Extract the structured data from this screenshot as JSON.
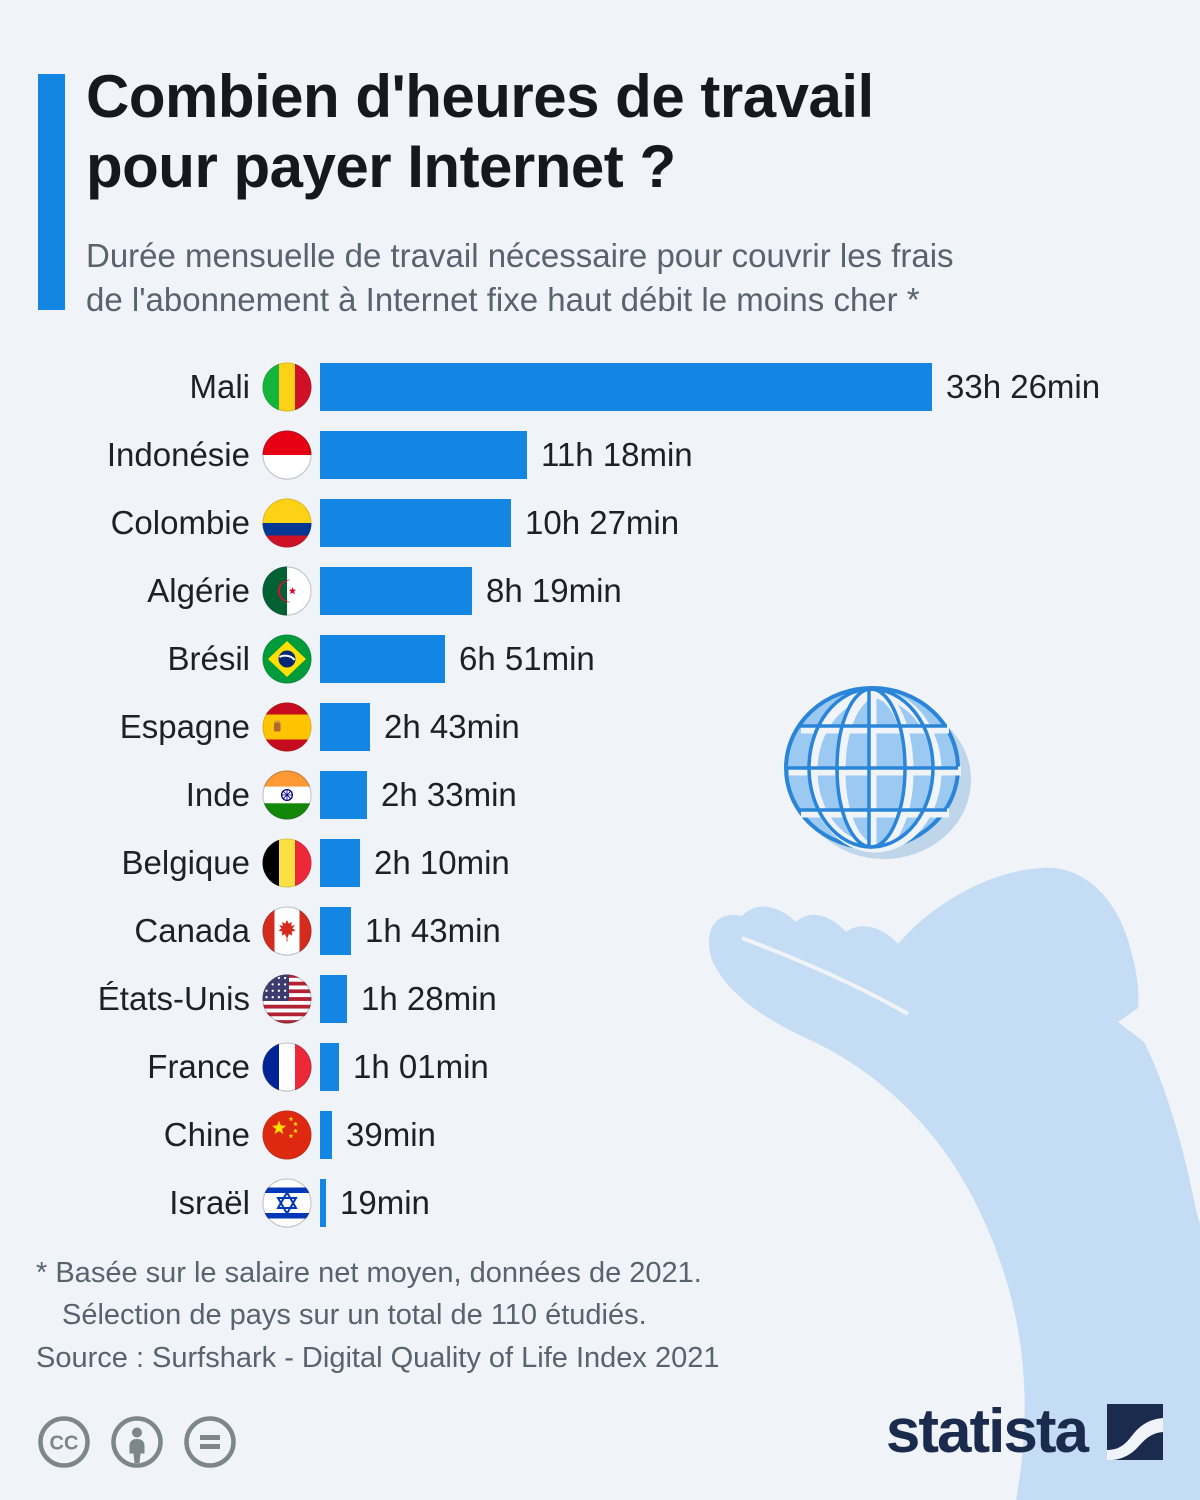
{
  "chart_data": {
    "type": "bar",
    "orientation": "horizontal",
    "title": "Combien d'heures de travail pour payer Internet ?",
    "title_lines": [
      "Combien d'heures de travail",
      "pour payer Internet ?"
    ],
    "subtitle_lines": [
      "Durée mensuelle de travail nécessaire pour couvrir les frais",
      "de l'abonnement à Internet fixe haut débit le moins cher *"
    ],
    "unit": "minutes of monthly work",
    "value_axis_max": 2006,
    "categories": [
      "Mali",
      "Indonésie",
      "Colombie",
      "Algérie",
      "Brésil",
      "Espagne",
      "Inde",
      "Belgique",
      "Canada",
      "États-Unis",
      "France",
      "Chine",
      "Israël"
    ],
    "values": [
      2006,
      678,
      627,
      499,
      411,
      163,
      153,
      130,
      103,
      88,
      61,
      39,
      19
    ],
    "value_labels": [
      "33h 26min",
      "11h 18min",
      "10h 27min",
      "8h 19min",
      "6h 51min",
      "2h 43min",
      "2h 33min",
      "2h 10min",
      "1h 43min",
      "1h 28min",
      "1h 01min",
      "39min",
      "19min"
    ],
    "flags": [
      "mali",
      "indonesie",
      "colombie",
      "algerie",
      "bresil",
      "espagne",
      "inde",
      "belgique",
      "canada",
      "etats-unis",
      "france",
      "chine",
      "israel"
    ],
    "bar_color": "#1385e2",
    "legend": "none",
    "grid": "off"
  },
  "footnote": {
    "line1": "* Basée sur le salaire net moyen, données de 2021.",
    "line2": "Sélection de pays sur un total de 110 étudiés."
  },
  "source": "Source : Surfshark - Digital Quality of Life Index 2021",
  "footer": {
    "brand": "statista",
    "license_icons": [
      "cc-icon",
      "attribution-icon",
      "no-derivatives-icon"
    ]
  },
  "colors": {
    "background": "#f0f4f8",
    "bar_blue": "#1385e2",
    "accent_blue": "#1385e2",
    "title_text": "#15191d",
    "muted_text": "#59626e",
    "brand_navy": "#1b2b4d",
    "license_gray": "#7d8689",
    "hand_fill": "#c4ddf4",
    "globe_fill": "#9cc9f2",
    "globe_line": "#2a85d8"
  }
}
